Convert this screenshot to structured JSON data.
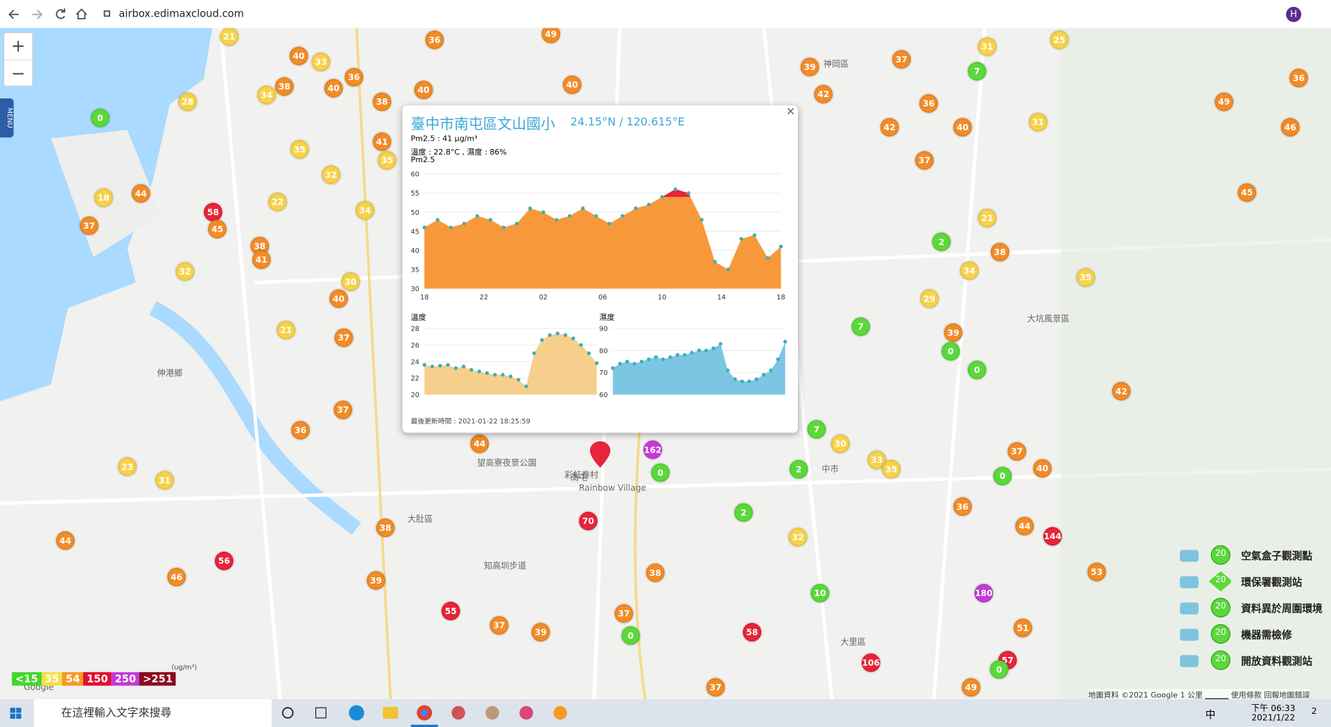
{
  "browser": {
    "url": "airbox.edimaxcloud.com",
    "avatar": "H"
  },
  "map": {
    "zoom_in": "+",
    "zoom_out": "−",
    "menu": "MENU",
    "place_labels": [
      "伸港鄉",
      "大肚區",
      "望高寮夜景公園",
      "彩虹眷村",
      "Rainbow Village",
      "知高圳步道",
      "大坑風景區",
      "神岡區",
      "南屯",
      "大里區",
      "中市",
      "Google"
    ],
    "markers": [
      {
        "value": 21,
        "color": "#f7d24a"
      },
      {
        "value": 36,
        "color": "#f28c28"
      },
      {
        "value": 40,
        "color": "#f28c28"
      },
      {
        "value": 33,
        "color": "#f7d24a"
      },
      {
        "value": 36,
        "color": "#f28c28"
      },
      {
        "value": 38,
        "color": "#f28c28"
      },
      {
        "value": 40,
        "color": "#f28c28"
      },
      {
        "value": 34,
        "color": "#f7d24a"
      },
      {
        "value": 28,
        "color": "#f7d24a"
      },
      {
        "value": 38,
        "color": "#f28c28"
      },
      {
        "value": 40,
        "color": "#f28c28"
      },
      {
        "value": 40,
        "color": "#f28c28"
      },
      {
        "value": 49,
        "color": "#f28c28"
      },
      {
        "value": 0,
        "color": "#5bd83b"
      },
      {
        "value": 35,
        "color": "#f7d24a"
      },
      {
        "value": 41,
        "color": "#f28c28"
      },
      {
        "value": 35,
        "color": "#f7d24a"
      },
      {
        "value": 32,
        "color": "#f7d24a"
      },
      {
        "value": 44,
        "color": "#f28c28"
      },
      {
        "value": 18,
        "color": "#f7d24a"
      },
      {
        "value": 58,
        "color": "#e8243a"
      },
      {
        "value": 45,
        "color": "#f28c28"
      },
      {
        "value": 37,
        "color": "#f28c28"
      },
      {
        "value": 22,
        "color": "#f7d24a"
      },
      {
        "value": 34,
        "color": "#f7d24a"
      },
      {
        "value": 38,
        "color": "#f28c28"
      },
      {
        "value": 41,
        "color": "#f28c28"
      },
      {
        "value": 32,
        "color": "#f7d24a"
      },
      {
        "value": 30,
        "color": "#f7d24a"
      },
      {
        "value": 40,
        "color": "#f28c28"
      },
      {
        "value": 21,
        "color": "#f7d24a"
      },
      {
        "value": 37,
        "color": "#f28c28"
      },
      {
        "value": 37,
        "color": "#f28c28"
      },
      {
        "value": 36,
        "color": "#f28c28"
      },
      {
        "value": 44,
        "color": "#f28c28"
      },
      {
        "value": 162,
        "color": "#c43ad8"
      },
      {
        "value": 23,
        "color": "#f7d24a"
      },
      {
        "value": 31,
        "color": "#f7d24a"
      },
      {
        "value": 38,
        "color": "#f28c28"
      },
      {
        "value": 44,
        "color": "#f28c28"
      },
      {
        "value": 56,
        "color": "#e8243a"
      },
      {
        "value": 46,
        "color": "#f28c28"
      },
      {
        "value": 39,
        "color": "#f28c28"
      },
      {
        "value": 55,
        "color": "#e8243a"
      },
      {
        "value": 37,
        "color": "#f28c28"
      },
      {
        "value": 39,
        "color": "#f28c28"
      },
      {
        "value": 70,
        "color": "#e8243a"
      },
      {
        "value": 58,
        "color": "#e8243a"
      },
      {
        "value": 106,
        "color": "#e8243a"
      },
      {
        "value": 180,
        "color": "#c43ad8"
      },
      {
        "value": 144,
        "color": "#e8243a"
      },
      {
        "value": 53,
        "color": "#f28c28"
      },
      {
        "value": 42,
        "color": "#f28c28"
      },
      {
        "value": 45,
        "color": "#f28c28"
      },
      {
        "value": 49,
        "color": "#f28c28"
      },
      {
        "value": 36,
        "color": "#f28c28"
      },
      {
        "value": 46,
        "color": "#f28c28"
      },
      {
        "value": 35,
        "color": "#f7d24a"
      },
      {
        "value": 38,
        "color": "#f28c28"
      },
      {
        "value": 2,
        "color": "#5bd83b"
      },
      {
        "value": 7,
        "color": "#5bd83b"
      },
      {
        "value": 36,
        "color": "#f28c28"
      },
      {
        "value": 40,
        "color": "#f28c28"
      },
      {
        "value": 42,
        "color": "#f28c28"
      },
      {
        "value": 39,
        "color": "#f28c28"
      },
      {
        "value": 42,
        "color": "#f28c28"
      },
      {
        "value": 37,
        "color": "#f28c28"
      },
      {
        "value": 31,
        "color": "#f7d24a"
      },
      {
        "value": 25,
        "color": "#f7d24a"
      },
      {
        "value": 31,
        "color": "#f7d24a"
      },
      {
        "value": 37,
        "color": "#f28c28"
      },
      {
        "value": 21,
        "color": "#f7d24a"
      },
      {
        "value": 34,
        "color": "#f7d24a"
      },
      {
        "value": 29,
        "color": "#f7d24a"
      },
      {
        "value": 39,
        "color": "#f28c28"
      },
      {
        "value": 0,
        "color": "#5bd83b"
      },
      {
        "value": 0,
        "color": "#5bd83b"
      },
      {
        "value": 37,
        "color": "#f28c28"
      },
      {
        "value": 40,
        "color": "#f28c28"
      },
      {
        "value": 0,
        "color": "#5bd83b"
      },
      {
        "value": 36,
        "color": "#f28c28"
      },
      {
        "value": 44,
        "color": "#f28c28"
      },
      {
        "value": 51,
        "color": "#f28c28"
      },
      {
        "value": 57,
        "color": "#e8243a"
      },
      {
        "value": 0,
        "color": "#5bd83b"
      },
      {
        "value": 49,
        "color": "#f28c28"
      },
      {
        "value": 7,
        "color": "#5bd83b"
      },
      {
        "value": 7,
        "color": "#5bd83b"
      },
      {
        "value": 2,
        "color": "#5bd83b"
      },
      {
        "value": 0,
        "color": "#5bd83b"
      },
      {
        "value": 2,
        "color": "#5bd83b"
      },
      {
        "value": 10,
        "color": "#5bd83b"
      },
      {
        "value": 0,
        "color": "#5bd83b"
      },
      {
        "value": 37,
        "color": "#f28c28"
      },
      {
        "value": 38,
        "color": "#f28c28"
      },
      {
        "value": 37,
        "color": "#f28c28"
      },
      {
        "value": 33,
        "color": "#f7d24a"
      },
      {
        "value": 30,
        "color": "#f7d24a"
      },
      {
        "value": 35,
        "color": "#f7d24a"
      },
      {
        "value": 32,
        "color": "#f7d24a"
      }
    ],
    "attribution": "地圖資料 ©2021 Google   1 公里 ▁▁▁▁   使用條款   回報地圖錯誤"
  },
  "popup": {
    "close": "×",
    "title": "臺中市南屯區文山國小",
    "coords": "24.15°N / 120.615°E",
    "pm25_line": "Pm2.5 : 41 μg/m³",
    "temp_hum_line": "溫度 : 22.8°C , 濕度 : 86%",
    "updated": "最後更新時間 : 2021-01-22 18:25:59",
    "pm25_chart": {
      "type": "area",
      "label": "Pm2.5",
      "xtick_labels": [
        "18",
        "22",
        "02",
        "06",
        "10",
        "14",
        "18"
      ],
      "values": [
        46,
        48,
        46,
        47,
        49,
        48,
        46,
        47,
        51,
        50,
        48,
        49,
        51,
        49,
        47,
        49,
        51,
        52,
        54,
        56,
        55,
        48,
        37,
        35,
        43,
        44,
        38,
        41
      ],
      "ylim": [
        30,
        60
      ],
      "yticks": [
        30,
        35,
        40,
        45,
        50,
        55,
        60
      ],
      "color": "#f7993a",
      "high_color": "#e8243a",
      "grid": true
    },
    "temp_chart": {
      "type": "area",
      "label": "溫度",
      "values": [
        23.6,
        23.4,
        23.5,
        23.6,
        23.2,
        23.4,
        23.0,
        22.8,
        22.6,
        22.4,
        22.4,
        22.2,
        21.8,
        21.0,
        25.0,
        26.6,
        27.2,
        27.4,
        27.2,
        26.8,
        26.0,
        25.0,
        23.8
      ],
      "ylim": [
        20,
        28
      ],
      "yticks": [
        20,
        22,
        24,
        26,
        28
      ],
      "color": "#f6cf8c",
      "grid": true
    },
    "hum_chart": {
      "type": "area",
      "label": "濕度",
      "values": [
        72,
        74,
        75,
        74,
        75,
        76,
        77,
        76,
        77,
        78,
        78,
        79,
        80,
        80,
        81,
        83,
        71,
        67,
        66,
        66,
        67,
        69,
        71,
        76,
        84
      ],
      "ylim": [
        60,
        90
      ],
      "yticks": [
        60,
        70,
        80,
        90
      ],
      "color": "#7cc6e4",
      "grid": true
    }
  },
  "legend": {
    "scale": [
      {
        "label": "<15",
        "value": 15,
        "color": "#44d62c"
      },
      {
        "label": "35",
        "value": 35,
        "color": "#f5e04a"
      },
      {
        "label": "54",
        "value": 54,
        "color": "#f59a23"
      },
      {
        "label": "150",
        "value": 150,
        "color": "#e0102f"
      },
      {
        "label": "250",
        "value": 250,
        "color": "#c43ad8"
      },
      {
        "label": ">251",
        "value": 251,
        "color": "#8b0a1e"
      }
    ],
    "unit": "(ug/m³)",
    "items": [
      {
        "badge": "20",
        "label": "空氣盒子觀測點"
      },
      {
        "badge": "20",
        "label": "環保署觀測站"
      },
      {
        "badge": "20",
        "label": "資料異於周圍環境"
      },
      {
        "badge": "20",
        "label": "機器需檢修"
      },
      {
        "badge": "20",
        "label": "開放資料觀測站"
      }
    ]
  },
  "taskbar": {
    "search": "在這裡輸入文字來搜尋",
    "ime": "中",
    "time": "下午 06:33",
    "date": "2021/1/22",
    "notify": "2"
  }
}
